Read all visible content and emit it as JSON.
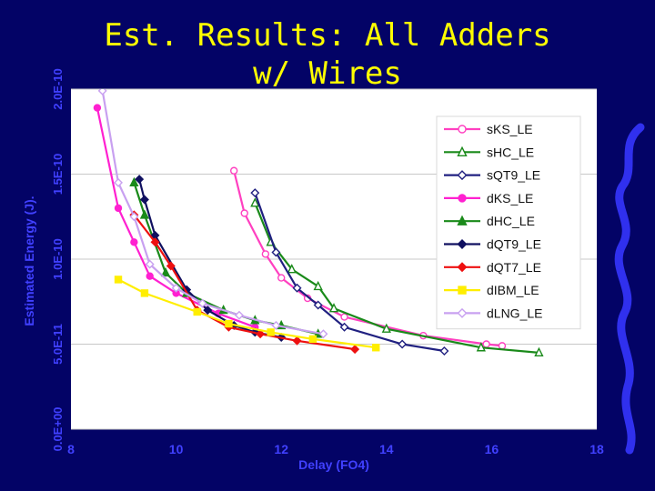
{
  "slide": {
    "title_line1": "Est. Results: All Adders",
    "title_line2": "w/ Wires",
    "footer_left": "",
    "footer_mid": "",
    "footer_right": ""
  },
  "colors": {
    "background": "#030366",
    "plot_area": "#ffffff",
    "title": "#ffff00",
    "axis_text": "#4040ff"
  },
  "chart_data": {
    "type": "line",
    "title": "Est. Results: All Adders w/ Wires",
    "xlabel": "Delay (FO4)",
    "ylabel": "Estimated Energy (J).",
    "xlim": [
      8,
      18
    ],
    "ylim": [
      0,
      2e-10
    ],
    "xticks": [
      8,
      10,
      12,
      14,
      16,
      18
    ],
    "xtick_labels": [
      "8",
      "10",
      "12",
      "14",
      "16",
      "18"
    ],
    "yticks": [
      0,
      5e-11,
      1e-10,
      1.5e-10,
      2e-10
    ],
    "ytick_labels": [
      "0.0E+00",
      "5.0E-11",
      "1.0E-10",
      "1.5E-10",
      "2.0E-10"
    ],
    "grid": "horizontal",
    "legend_position": "top-right",
    "series": [
      {
        "name": "sKS_LE",
        "color": "#ff40c0",
        "marker": "circle-open",
        "x": [
          11.1,
          11.3,
          11.7,
          12.0,
          12.5,
          13.2,
          14.7,
          15.9,
          16.2
        ],
        "y": [
          1.52e-10,
          1.27e-10,
          1.03e-10,
          8.9e-11,
          7.7e-11,
          6.6e-11,
          5.5e-11,
          5e-11,
          4.9e-11
        ]
      },
      {
        "name": "sHC_LE",
        "color": "#1a8a1a",
        "marker": "triangle-open",
        "x": [
          11.5,
          11.8,
          12.2,
          12.7,
          13.0,
          14.0,
          15.8,
          16.9
        ],
        "y": [
          1.33e-10,
          1.1e-10,
          9.4e-11,
          8.4e-11,
          7.1e-11,
          5.9e-11,
          4.8e-11,
          4.5e-11
        ]
      },
      {
        "name": "sQT9_LE",
        "color": "#202080",
        "marker": "diamond-open",
        "x": [
          11.5,
          11.9,
          12.3,
          12.7,
          13.2,
          14.3,
          15.1
        ],
        "y": [
          1.39e-10,
          1.04e-10,
          8.3e-11,
          7.3e-11,
          6e-11,
          5e-11,
          4.6e-11
        ]
      },
      {
        "name": "dKS_LE",
        "color": "#ff20d0",
        "marker": "circle",
        "x": [
          8.5,
          8.9,
          9.2,
          9.5,
          10.0,
          10.8,
          11.5
        ],
        "y": [
          1.89e-10,
          1.3e-10,
          1.1e-10,
          9e-11,
          8e-11,
          6.8e-11,
          6e-11
        ]
      },
      {
        "name": "dHC_LE",
        "color": "#1a8a1a",
        "marker": "triangle",
        "x": [
          9.2,
          9.4,
          9.8,
          10.2,
          10.9,
          11.5,
          12.0,
          12.7
        ],
        "y": [
          1.45e-10,
          1.26e-10,
          9.2e-11,
          8e-11,
          7e-11,
          6.4e-11,
          6.1e-11,
          5.6e-11
        ]
      },
      {
        "name": "dQT9_LE",
        "color": "#101060",
        "marker": "diamond",
        "x": [
          9.3,
          9.4,
          9.6,
          10.2,
          10.6,
          11.1,
          11.5,
          12.0
        ],
        "y": [
          1.47e-10,
          1.35e-10,
          1.14e-10,
          8.2e-11,
          7e-11,
          6.1e-11,
          5.7e-11,
          5.4e-11
        ]
      },
      {
        "name": "dQT7_LE",
        "color": "#ee1010",
        "marker": "diamond",
        "x": [
          9.2,
          9.6,
          9.9,
          10.4,
          11.0,
          11.6,
          12.3,
          13.4
        ],
        "y": [
          1.26e-10,
          1.1e-10,
          9.6e-11,
          7e-11,
          6e-11,
          5.6e-11,
          5.2e-11,
          4.7e-11
        ]
      },
      {
        "name": "dIBM_LE",
        "color": "#ffee00",
        "marker": "square",
        "x": [
          8.9,
          9.4,
          10.4,
          11.0,
          11.8,
          12.6,
          13.8
        ],
        "y": [
          8.8e-11,
          8e-11,
          6.9e-11,
          6.2e-11,
          5.7e-11,
          5.3e-11,
          4.8e-11
        ]
      },
      {
        "name": "dLNG_LE",
        "color": "#c8a0f0",
        "marker": "diamond-open",
        "x": [
          8.6,
          8.9,
          9.2,
          9.5,
          10.0,
          10.5,
          11.2,
          11.9,
          12.8
        ],
        "y": [
          1.99e-10,
          1.45e-10,
          1.25e-10,
          9.7e-11,
          8.3e-11,
          7.4e-11,
          6.7e-11,
          6.1e-11,
          5.6e-11
        ]
      }
    ]
  }
}
